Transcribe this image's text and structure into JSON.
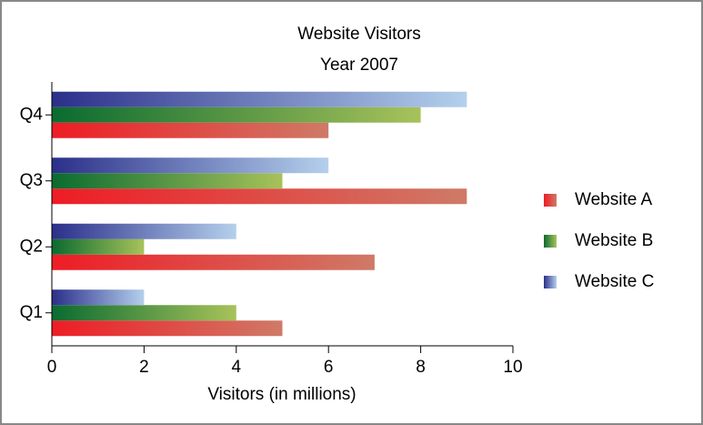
{
  "chart_data": {
    "type": "hbar",
    "title": "Website Visitors",
    "subtitle": "Year 2007",
    "x_label": "Visitors (in millions)",
    "categories": [
      "Q1",
      "Q2",
      "Q3",
      "Q4"
    ],
    "series": [
      {
        "name": "Website A",
        "color": [
          "#ee1c25",
          "#cf7a67"
        ],
        "values": [
          5,
          7,
          9,
          6
        ]
      },
      {
        "name": "Website B",
        "color": [
          "#0a6b30",
          "#a8c25a"
        ],
        "values": [
          4,
          2,
          5,
          8
        ]
      },
      {
        "name": "Website C",
        "color": [
          "#2b2f8a",
          "#b4d0ec"
        ],
        "values": [
          2,
          4,
          6,
          9
        ]
      }
    ],
    "xlim": [
      0,
      10
    ],
    "xticks": [
      0,
      2,
      4,
      6,
      8,
      10
    ],
    "legend": "right"
  }
}
